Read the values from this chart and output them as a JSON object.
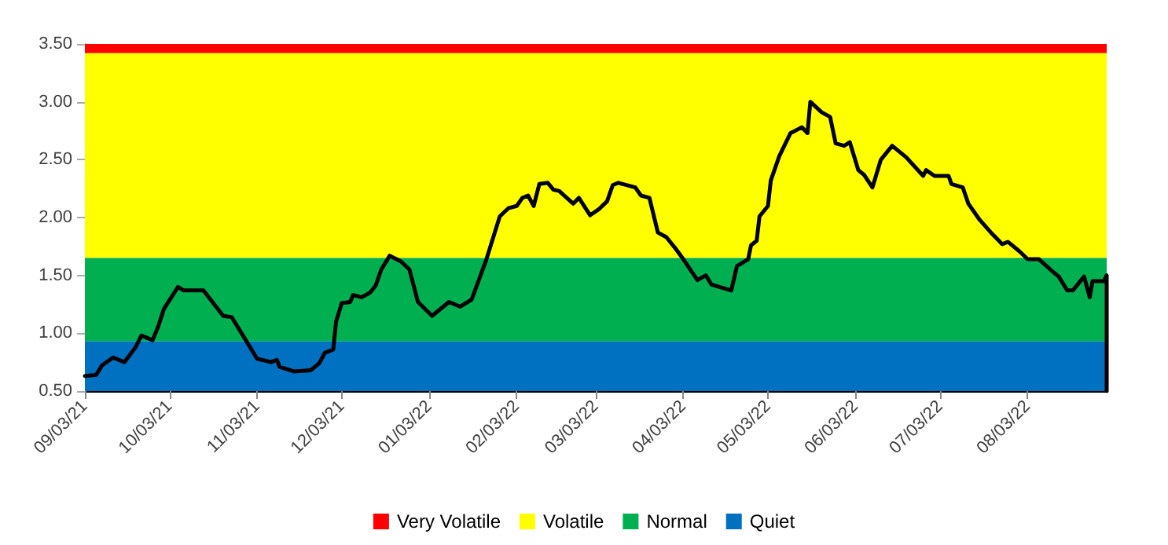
{
  "chart_data": {
    "type": "line",
    "legend": "bottom",
    "grid": false,
    "marker": "none",
    "line_style": "solid",
    "x": [
      "2021-09-03",
      "2021-09-07",
      "2021-09-09",
      "2021-09-13",
      "2021-09-17",
      "2021-09-21",
      "2021-09-23",
      "2021-09-27",
      "2021-09-29",
      "2021-10-01",
      "2021-10-06",
      "2021-10-08",
      "2021-10-15",
      "2021-10-22",
      "2021-10-25",
      "2021-10-30",
      "2021-11-03",
      "2021-11-08",
      "2021-11-10",
      "2021-11-11",
      "2021-11-16",
      "2021-11-22",
      "2021-11-25",
      "2021-11-27",
      "2021-11-30",
      "2021-12-01",
      "2021-12-03",
      "2021-12-06",
      "2021-12-07",
      "2021-12-10",
      "2021-12-13",
      "2021-12-15",
      "2021-12-17",
      "2021-12-20",
      "2021-12-24",
      "2021-12-27",
      "2021-12-30",
      "2022-01-04",
      "2022-01-10",
      "2022-01-14",
      "2022-01-18",
      "2022-01-23",
      "2022-01-28",
      "2022-01-31",
      "2022-02-03",
      "2022-02-05",
      "2022-02-07",
      "2022-02-09",
      "2022-02-11",
      "2022-02-14",
      "2022-02-16",
      "2022-02-18",
      "2022-02-23",
      "2022-02-25",
      "2022-03-01",
      "2022-03-04",
      "2022-03-07",
      "2022-03-09",
      "2022-03-11",
      "2022-03-17",
      "2022-03-19",
      "2022-03-22",
      "2022-03-25",
      "2022-03-28",
      "2022-03-31",
      "2022-04-03",
      "2022-04-08",
      "2022-04-11",
      "2022-04-13",
      "2022-04-20",
      "2022-04-22",
      "2022-04-26",
      "2022-04-27",
      "2022-04-29",
      "2022-04-30",
      "2022-05-03",
      "2022-05-04",
      "2022-05-07",
      "2022-05-11",
      "2022-05-15",
      "2022-05-17",
      "2022-05-18",
      "2022-05-22",
      "2022-05-25",
      "2022-05-27",
      "2022-05-30",
      "2022-06-01",
      "2022-06-04",
      "2022-06-06",
      "2022-06-09",
      "2022-06-12",
      "2022-06-16",
      "2022-06-21",
      "2022-06-27",
      "2022-06-28",
      "2022-07-01",
      "2022-07-06",
      "2022-07-07",
      "2022-07-11",
      "2022-07-13",
      "2022-07-17",
      "2022-07-21",
      "2022-07-25",
      "2022-07-27",
      "2022-07-31",
      "2022-08-03",
      "2022-08-07",
      "2022-08-12",
      "2022-08-14",
      "2022-08-17",
      "2022-08-19",
      "2022-08-23",
      "2022-08-25",
      "2022-08-26",
      "2022-08-30",
      "2022-08-31",
      "2022-08-31"
    ],
    "series": [
      {
        "color": "#000000",
        "values": [
          0.63,
          0.64,
          0.72,
          0.79,
          0.75,
          0.88,
          0.98,
          0.94,
          1.06,
          1.21,
          1.4,
          1.37,
          1.37,
          1.15,
          1.14,
          0.94,
          0.78,
          0.75,
          0.77,
          0.71,
          0.67,
          0.68,
          0.74,
          0.83,
          0.86,
          1.1,
          1.26,
          1.27,
          1.33,
          1.31,
          1.35,
          1.41,
          1.55,
          1.67,
          1.62,
          1.55,
          1.27,
          1.15,
          1.27,
          1.23,
          1.29,
          1.62,
          2.01,
          2.08,
          2.1,
          2.17,
          2.19,
          2.1,
          2.29,
          2.3,
          2.24,
          2.23,
          2.12,
          2.17,
          2.02,
          2.07,
          2.14,
          2.28,
          2.3,
          2.26,
          2.19,
          2.17,
          1.87,
          1.83,
          1.74,
          1.64,
          1.46,
          1.5,
          1.42,
          1.37,
          1.58,
          1.64,
          1.76,
          1.8,
          2.01,
          2.1,
          2.32,
          2.53,
          2.73,
          2.78,
          2.73,
          3.0,
          2.91,
          2.87,
          2.64,
          2.62,
          2.65,
          2.41,
          2.37,
          2.26,
          2.5,
          2.62,
          2.52,
          2.36,
          2.41,
          2.36,
          2.36,
          2.29,
          2.26,
          2.12,
          1.98,
          1.87,
          1.77,
          1.79,
          1.71,
          1.64,
          1.64,
          1.53,
          1.49,
          1.37,
          1.37,
          1.49,
          1.31,
          1.45,
          1.45,
          1.5,
          0.5
        ]
      }
    ],
    "bands": [
      {
        "axis": "y",
        "from": 3.42,
        "to": 3.5,
        "label": "Very Volatile",
        "color": "#ff0000"
      },
      {
        "axis": "y",
        "from": 1.65,
        "to": 3.42,
        "label": "Volatile",
        "color": "#ffff00"
      },
      {
        "axis": "y",
        "from": 0.93,
        "to": 1.65,
        "label": "Normal",
        "color": "#00b050"
      },
      {
        "axis": "y",
        "from": 0.5,
        "to": 0.93,
        "label": "Quiet",
        "color": "#0070c0"
      }
    ],
    "xlim": [
      "2021-09-03",
      "2022-08-31"
    ],
    "xticks": [
      {
        "value": "2021-09-03",
        "label": "09/03/21"
      },
      {
        "value": "2021-10-03",
        "label": "10/03/21"
      },
      {
        "value": "2021-11-03",
        "label": "11/03/21"
      },
      {
        "value": "2021-12-03",
        "label": "12/03/21"
      },
      {
        "value": "2022-01-03",
        "label": "01/03/22"
      },
      {
        "value": "2022-02-03",
        "label": "02/03/22"
      },
      {
        "value": "2022-03-03",
        "label": "03/03/22"
      },
      {
        "value": "2022-04-03",
        "label": "04/03/22"
      },
      {
        "value": "2022-05-03",
        "label": "05/03/22"
      },
      {
        "value": "2022-06-03",
        "label": "06/03/22"
      },
      {
        "value": "2022-07-03",
        "label": "07/03/22"
      },
      {
        "value": "2022-08-03",
        "label": "08/03/22"
      }
    ],
    "ylim": [
      0.5,
      3.5
    ],
    "yticks": [
      {
        "value": 0.5,
        "label": "0.50"
      },
      {
        "value": 1,
        "label": "1.00"
      },
      {
        "value": 1.5,
        "label": "1.50"
      },
      {
        "value": 2,
        "label": "2.00"
      },
      {
        "value": 2.5,
        "label": "2.50"
      },
      {
        "value": 3,
        "label": "3.00"
      },
      {
        "value": 3.5,
        "label": "3.50"
      }
    ]
  }
}
